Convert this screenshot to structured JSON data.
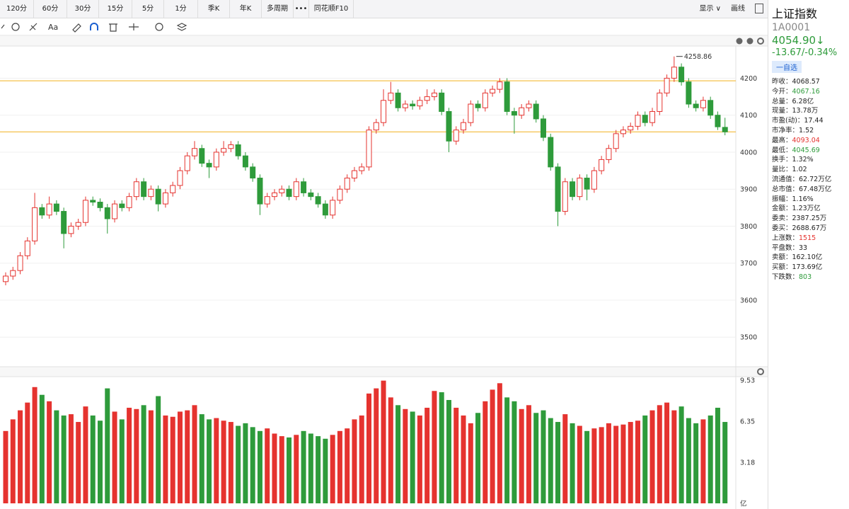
{
  "toolbar": {
    "tabs": [
      "120分",
      "60分",
      "30分",
      "15分",
      "5分",
      "1分",
      "季K",
      "年K",
      "多周期",
      "•••",
      "同花顺F10"
    ],
    "display": "显示 ∨",
    "draw_line": "画线",
    "text_tool": "Aa"
  },
  "info": {
    "name": "上证指数",
    "code": "1A0001",
    "price": "4054.90↓",
    "change": "-13.67/-0.34%",
    "watch_button": "一自选",
    "stats": [
      {
        "label": "昨收：",
        "value": "4068.57"
      },
      {
        "label": "今开：",
        "value": "4067.16",
        "color": "#2e9b3b"
      },
      {
        "label": "总量：",
        "value": "6.28亿"
      },
      {
        "label": "现量：",
        "value": "13.78万"
      },
      {
        "label": "市盈(动)：",
        "value": "17.44"
      },
      {
        "label": "市净率：",
        "value": "1.52"
      },
      {
        "label": "最高：",
        "value": "4093.04",
        "color": "#e5332f"
      },
      {
        "label": "最低：",
        "value": "4045.69",
        "color": "#2e9b3b"
      },
      {
        "label": "换手：",
        "value": "1.32%"
      },
      {
        "label": "量比：",
        "value": "1.02"
      },
      {
        "label": "流通值：",
        "value": "62.72万亿"
      },
      {
        "label": "总市值：",
        "value": "67.48万亿"
      },
      {
        "label": "振幅：",
        "value": "1.16%"
      },
      {
        "label": "金额：",
        "value": "1.23万亿"
      },
      {
        "label": "委卖：",
        "value": "2387.25万"
      },
      {
        "label": "委买：",
        "value": "2688.67万"
      },
      {
        "label": "上涨数：",
        "value": "1515",
        "color": "#e5332f"
      },
      {
        "label": "平盘数：",
        "value": "33"
      },
      {
        "label": "卖额：",
        "value": "162.10亿"
      },
      {
        "label": "买额：",
        "value": "173.69亿"
      },
      {
        "label": "下跌数：",
        "value": "803",
        "color": "#2e9b3b"
      }
    ]
  },
  "chart_data": {
    "type": "candlestick",
    "up_color": "#e5332f",
    "down_color": "#2e9b3b",
    "grid": true,
    "open": [
      3650,
      3665,
      3680,
      3720,
      3760,
      3850,
      3830,
      3860,
      3840,
      3780,
      3800,
      3810,
      3870,
      3865,
      3850,
      3820,
      3860,
      3850,
      3880,
      3920,
      3880,
      3900,
      3860,
      3890,
      3910,
      3950,
      3990,
      4010,
      3970,
      3960,
      4000,
      4010,
      4020,
      3990,
      3960,
      3930,
      3860,
      3880,
      3890,
      3900,
      3880,
      3920,
      3890,
      3880,
      3860,
      3830,
      3870,
      3900,
      3930,
      3950,
      3960,
      4060,
      4080,
      4140,
      4160,
      4120,
      4130,
      4125,
      4140,
      4150,
      4160,
      4110,
      4030,
      4060,
      4080,
      4130,
      4120,
      4160,
      4170,
      4190,
      4110,
      4100,
      4120,
      4130,
      4090,
      4040,
      3960,
      3840,
      3920,
      3880,
      3930,
      3900,
      3950,
      3980,
      4010,
      4050,
      4060,
      4070,
      4100,
      4080,
      4110,
      4160,
      4200,
      4230,
      4190,
      4130,
      4120,
      4140,
      4100,
      4067.16
    ],
    "high": [
      3675,
      3690,
      3730,
      3770,
      3890,
      3860,
      3880,
      3870,
      3850,
      3810,
      3820,
      3880,
      3880,
      3875,
      3860,
      3870,
      3870,
      3890,
      3930,
      3930,
      3910,
      3910,
      3900,
      3920,
      3960,
      4000,
      4030,
      4020,
      3980,
      4010,
      4030,
      4030,
      4030,
      4000,
      3970,
      3940,
      3890,
      3900,
      3910,
      3910,
      3930,
      3930,
      3900,
      3890,
      3870,
      3880,
      3910,
      3940,
      3960,
      3970,
      4070,
      4090,
      4170,
      4190,
      4170,
      4140,
      4140,
      4150,
      4170,
      4170,
      4170,
      4120,
      4070,
      4090,
      4140,
      4140,
      4170,
      4180,
      4200,
      4200,
      4120,
      4130,
      4140,
      4140,
      4100,
      4050,
      3970,
      3930,
      3930,
      3940,
      3940,
      3960,
      3990,
      4020,
      4060,
      4070,
      4080,
      4110,
      4110,
      4120,
      4170,
      4210,
      4258.86,
      4240,
      4200,
      4140,
      4150,
      4150,
      4110,
      4093.04
    ],
    "low": [
      3640,
      3655,
      3670,
      3710,
      3750,
      3820,
      3820,
      3830,
      3740,
      3770,
      3790,
      3800,
      3855,
      3840,
      3780,
      3810,
      3840,
      3840,
      3870,
      3870,
      3870,
      3840,
      3850,
      3880,
      3900,
      3940,
      3980,
      3960,
      3930,
      3950,
      3990,
      4000,
      3980,
      3950,
      3920,
      3830,
      3850,
      3870,
      3880,
      3870,
      3870,
      3880,
      3870,
      3850,
      3820,
      3820,
      3860,
      3890,
      3920,
      3940,
      3950,
      4050,
      4070,
      4130,
      4110,
      4110,
      4115,
      4115,
      4130,
      4140,
      4100,
      4000,
      4020,
      4050,
      4070,
      4110,
      4110,
      4150,
      4160,
      4100,
      4050,
      4090,
      4110,
      4080,
      4030,
      3950,
      3800,
      3830,
      3870,
      3870,
      3870,
      3890,
      3940,
      3970,
      4000,
      4040,
      4050,
      4060,
      4070,
      4070,
      4100,
      4150,
      4190,
      4180,
      4120,
      4110,
      4110,
      4090,
      4060,
      4045.69
    ],
    "close": [
      3665,
      3680,
      3720,
      3760,
      3850,
      3830,
      3860,
      3840,
      3780,
      3800,
      3810,
      3870,
      3865,
      3850,
      3820,
      3860,
      3850,
      3880,
      3920,
      3880,
      3900,
      3860,
      3890,
      3910,
      3950,
      3990,
      4010,
      3970,
      3960,
      4000,
      4010,
      4020,
      3990,
      3960,
      3930,
      3860,
      3880,
      3890,
      3900,
      3880,
      3920,
      3890,
      3880,
      3860,
      3830,
      3870,
      3900,
      3930,
      3950,
      3960,
      4060,
      4080,
      4140,
      4160,
      4120,
      4130,
      4125,
      4140,
      4150,
      4160,
      4110,
      4030,
      4060,
      4080,
      4130,
      4120,
      4160,
      4170,
      4190,
      4110,
      4100,
      4120,
      4130,
      4090,
      4040,
      3960,
      3840,
      3920,
      3880,
      3930,
      3900,
      3950,
      3980,
      4010,
      4050,
      4060,
      4070,
      4100,
      4080,
      4110,
      4160,
      4200,
      4230,
      4190,
      4130,
      4120,
      4140,
      4100,
      4068.57,
      4054.9
    ],
    "peak_index": 92,
    "ylim": [
      3420,
      4287
    ],
    "yticks": [
      3500,
      3600,
      3700,
      3800,
      3900,
      4000,
      4100,
      4200
    ],
    "reference_lines": [
      4193,
      4055
    ],
    "reference_color": "#f2b01e",
    "volume": {
      "values": [
        5.6,
        6.5,
        7.2,
        7.8,
        9.0,
        8.4,
        7.9,
        7.2,
        6.8,
        6.9,
        6.3,
        7.5,
        6.8,
        6.4,
        8.9,
        7.1,
        6.5,
        7.4,
        7.3,
        7.6,
        7.2,
        8.3,
        6.8,
        6.7,
        7.1,
        7.2,
        7.6,
        6.9,
        6.5,
        6.6,
        6.4,
        6.3,
        6.0,
        6.2,
        5.9,
        5.6,
        5.8,
        5.4,
        5.2,
        5.1,
        5.3,
        5.6,
        5.4,
        5.2,
        5.0,
        5.3,
        5.6,
        5.8,
        6.5,
        6.8,
        8.5,
        8.9,
        9.5,
        8.2,
        7.6,
        7.3,
        7.1,
        6.8,
        7.4,
        8.7,
        8.6,
        8.0,
        7.4,
        6.8,
        6.2,
        7.0,
        7.9,
        8.8,
        9.3,
        8.2,
        7.9,
        7.3,
        7.6,
        7.0,
        7.2,
        6.6,
        6.3,
        6.9,
        6.2,
        6.0,
        5.6,
        5.8,
        5.9,
        6.2,
        6.0,
        6.1,
        6.3,
        6.4,
        6.8,
        7.2,
        7.6,
        7.8,
        7.2,
        7.5,
        6.6,
        6.2,
        6.5,
        6.8,
        7.4,
        6.3
      ],
      "ylim": [
        0,
        9.7
      ],
      "yticks": [
        9.53,
        6.35,
        3.18,
        {
          "value": 0,
          "label": "亿"
        }
      ]
    }
  }
}
